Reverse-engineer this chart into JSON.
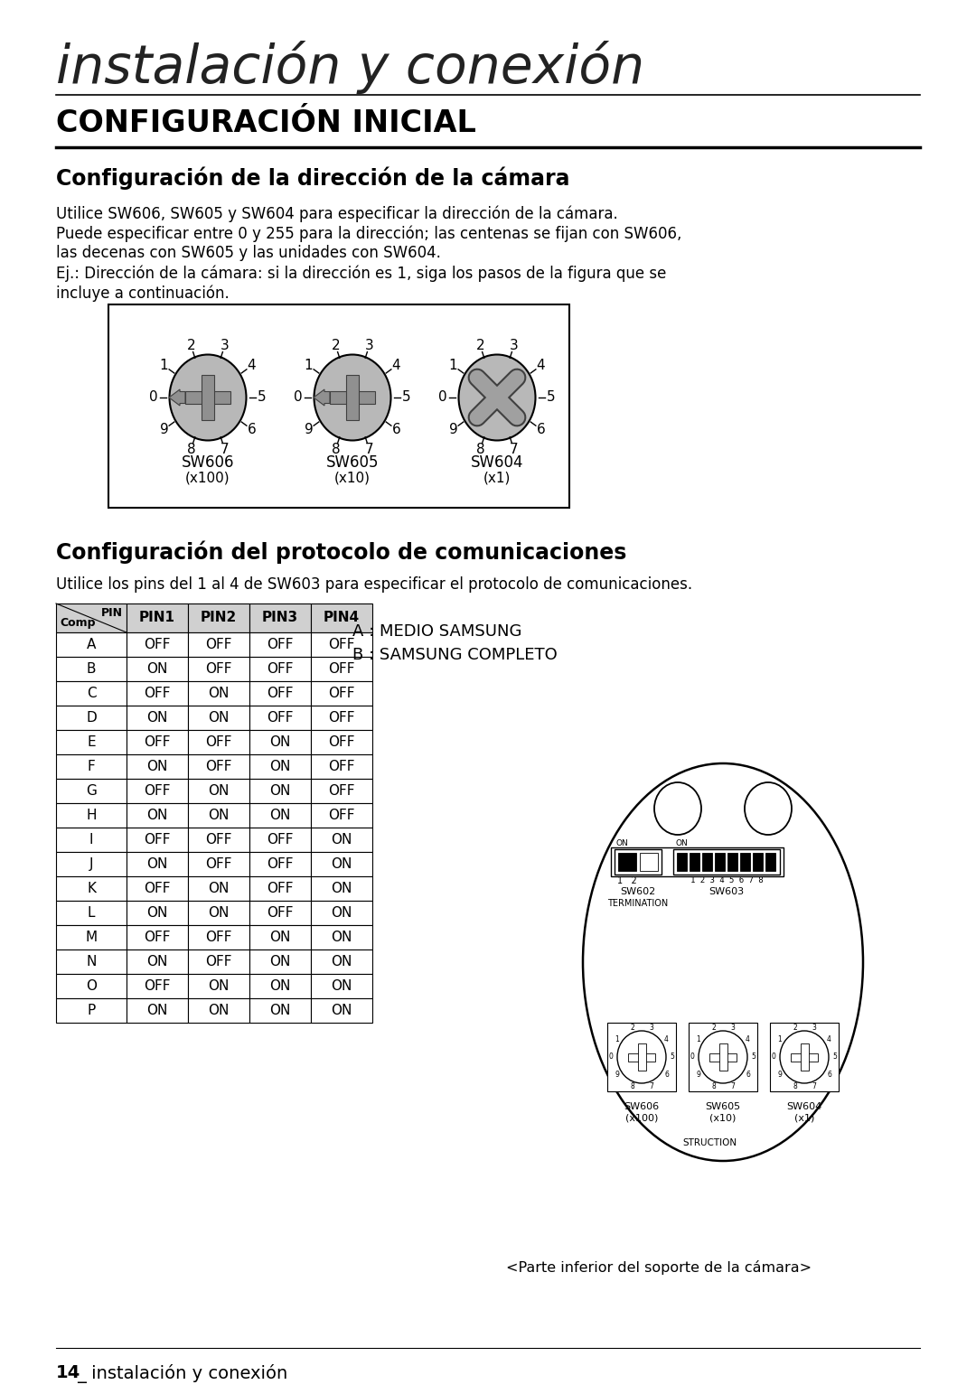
{
  "page_title": "instalación y conexión",
  "section_title": "CONFIGURACIÓN INICIAL",
  "subsection1": "Configuración de la dirección de la cámara",
  "para1_line1": "Utilice SW606, SW605 y SW604 para especificar la dirección de la cámara.",
  "para1_line2": "Puede especificar entre 0 y 255 para la dirección; las centenas se fijan con SW606,",
  "para1_line3": "las decenas con SW605 y las unidades con SW604.",
  "para1_line4": "Ej.: Dirección de la cámara: si la dirección es 1, siga los pasos de la figura que se",
  "para1_line5": "incluye a continuación.",
  "sw_labels": [
    "SW606",
    "SW605",
    "SW604"
  ],
  "sw_sublabels": [
    "(x100)",
    "(x10)",
    "(x1)"
  ],
  "subsection2": "Configuración del protocolo de comunicaciones",
  "para2": "Utilice los pins del 1 al 4 de SW603 para especificar el protocolo de comunicaciones.",
  "table_header_col0_top": "PIN",
  "table_header_col0_bot": "Comp",
  "table_header_pins": [
    "PIN1",
    "PIN2",
    "PIN3",
    "PIN4"
  ],
  "table_rows": [
    [
      "A",
      "OFF",
      "OFF",
      "OFF",
      "OFF"
    ],
    [
      "B",
      "ON",
      "OFF",
      "OFF",
      "OFF"
    ],
    [
      "C",
      "OFF",
      "ON",
      "OFF",
      "OFF"
    ],
    [
      "D",
      "ON",
      "ON",
      "OFF",
      "OFF"
    ],
    [
      "E",
      "OFF",
      "OFF",
      "ON",
      "OFF"
    ],
    [
      "F",
      "ON",
      "OFF",
      "ON",
      "OFF"
    ],
    [
      "G",
      "OFF",
      "ON",
      "ON",
      "OFF"
    ],
    [
      "H",
      "ON",
      "ON",
      "ON",
      "OFF"
    ],
    [
      "I",
      "OFF",
      "OFF",
      "OFF",
      "ON"
    ],
    [
      "J",
      "ON",
      "OFF",
      "OFF",
      "ON"
    ],
    [
      "K",
      "OFF",
      "ON",
      "OFF",
      "ON"
    ],
    [
      "L",
      "ON",
      "ON",
      "OFF",
      "ON"
    ],
    [
      "M",
      "OFF",
      "OFF",
      "ON",
      "ON"
    ],
    [
      "N",
      "ON",
      "OFF",
      "ON",
      "ON"
    ],
    [
      "O",
      "OFF",
      "ON",
      "ON",
      "ON"
    ],
    [
      "P",
      "ON",
      "ON",
      "ON",
      "ON"
    ]
  ],
  "legend_a": "A : MEDIO SAMSUNG",
  "legend_b": "B : SAMSUNG COMPLETO",
  "caption": "<Parte inferior del soporte de la cámara>",
  "footer_num": "14",
  "footer_text": "_ instalación y conexión",
  "bg_color": "#ffffff",
  "text_color": "#000000"
}
